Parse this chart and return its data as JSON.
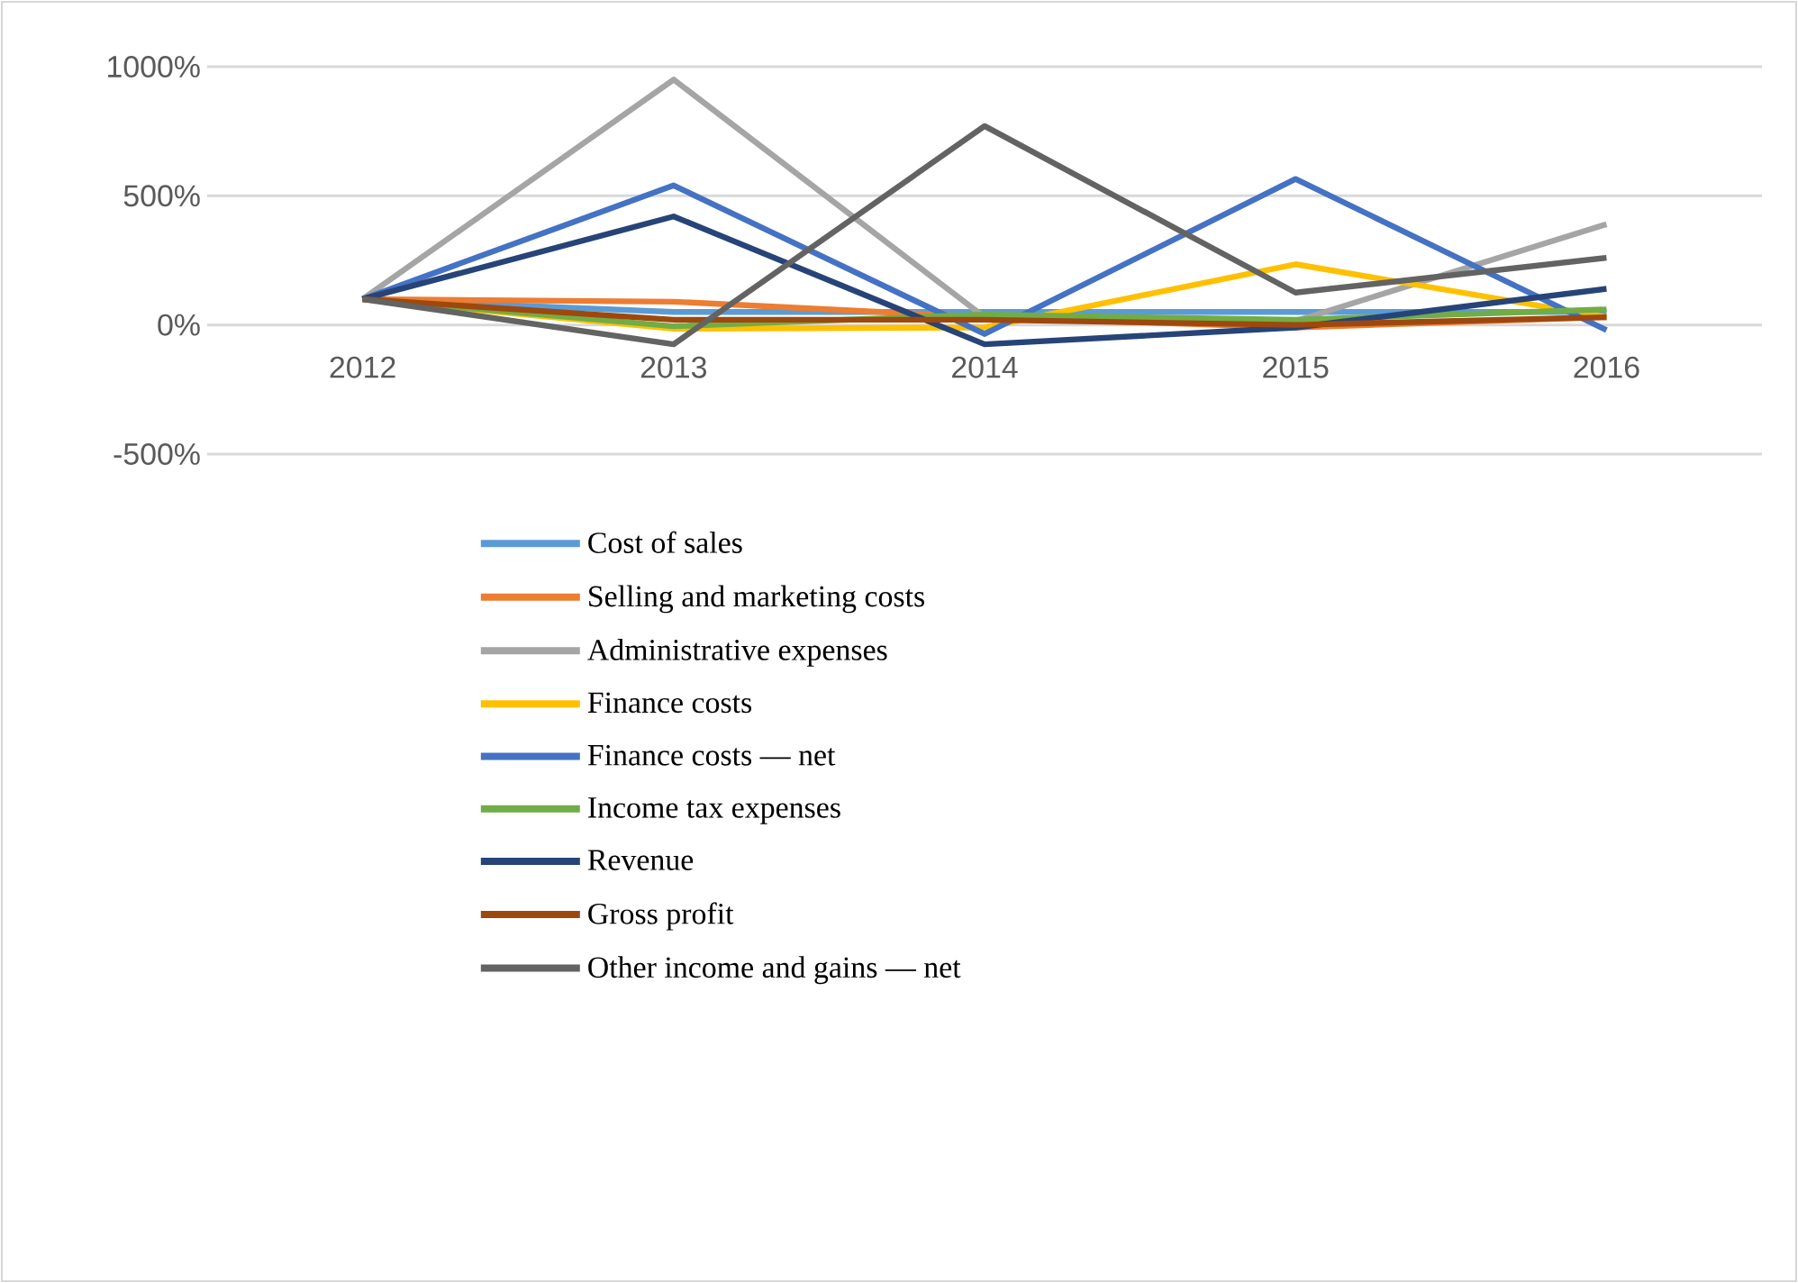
{
  "chart_data": {
    "type": "line",
    "categories": [
      "2012",
      "2013",
      "2014",
      "2015",
      "2016"
    ],
    "series": [
      {
        "name": "Cost of sales",
        "color": "#5b9bd5",
        "values": [
          100,
          50,
          50,
          50,
          50
        ]
      },
      {
        "name": "Selling and marketing costs",
        "color": "#ed7d31",
        "values": [
          100,
          90,
          30,
          -10,
          30
        ]
      },
      {
        "name": "Administrative expenses",
        "color": "#a5a5a5",
        "values": [
          100,
          950,
          30,
          15,
          390
        ]
      },
      {
        "name": "Finance costs",
        "color": "#ffc000",
        "values": [
          100,
          -15,
          -10,
          235,
          30
        ]
      },
      {
        "name": "Finance costs — net",
        "color": "#4472c4",
        "values": [
          100,
          540,
          -35,
          565,
          -20
        ]
      },
      {
        "name": "Income tax expenses",
        "color": "#70ad47",
        "values": [
          100,
          -5,
          40,
          20,
          60
        ]
      },
      {
        "name": "Revenue",
        "color": "#264478",
        "values": [
          100,
          420,
          -75,
          -10,
          140
        ]
      },
      {
        "name": "Gross profit",
        "color": "#9e480e",
        "values": [
          100,
          20,
          20,
          0,
          30
        ]
      },
      {
        "name": "Other income and gains — net",
        "color": "#636363",
        "values": [
          100,
          -75,
          770,
          125,
          260
        ]
      }
    ],
    "ylim": [
      -500,
      1000
    ],
    "yticks": [
      {
        "value": -500,
        "label": "-500%"
      },
      {
        "value": 0,
        "label": "0%"
      },
      {
        "value": 500,
        "label": "500%"
      },
      {
        "value": 1000,
        "label": "1000%"
      }
    ],
    "grid": "y",
    "legend": "bottom",
    "marker": "none",
    "line_style": "solid"
  }
}
